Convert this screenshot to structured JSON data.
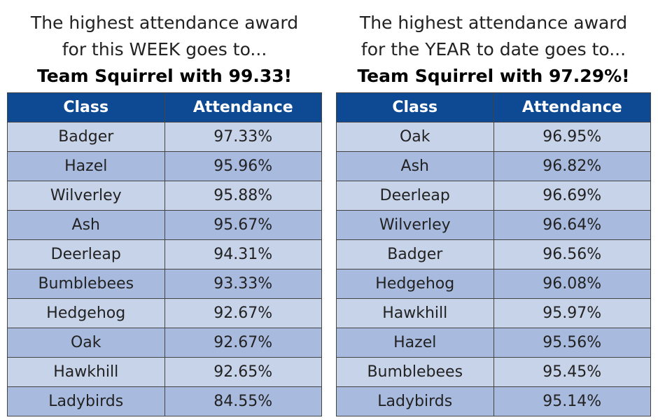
{
  "panels": [
    {
      "heading": [
        "The highest attendance award",
        "for this WEEK goes to...",
        "Team Squirrel with 99.33!"
      ],
      "table": {
        "header": [
          "Class",
          "Attendance"
        ],
        "rows": [
          [
            "Badger",
            "97.33%"
          ],
          [
            "Hazel",
            "95.96%"
          ],
          [
            "Wilverley",
            "95.88%"
          ],
          [
            "Ash",
            "95.67%"
          ],
          [
            "Deerleap",
            "94.31%"
          ],
          [
            "Bumblebees",
            "93.33%"
          ],
          [
            "Hedgehog",
            "92.67%"
          ],
          [
            "Oak",
            "92.67%"
          ],
          [
            "Hawkhill",
            "92.65%"
          ],
          [
            "Ladybirds",
            "84.55%"
          ]
        ]
      }
    },
    {
      "heading": [
        "The highest attendance award",
        "for the YEAR to date goes to...",
        "Team Squirrel with 97.29%!"
      ],
      "table": {
        "header": [
          "Class",
          "Attendance"
        ],
        "rows": [
          [
            "Oak",
            "96.95%"
          ],
          [
            "Ash",
            "96.82%"
          ],
          [
            "Deerleap",
            "96.69%"
          ],
          [
            "Wilverley",
            "96.64%"
          ],
          [
            "Badger",
            "96.56%"
          ],
          [
            "Hedgehog",
            "96.08%"
          ],
          [
            "Hawkhill",
            "95.97%"
          ],
          [
            "Hazel",
            "95.56%"
          ],
          [
            "Bumblebees",
            "95.45%"
          ],
          [
            "Ladybirds",
            "95.14%"
          ]
        ]
      }
    }
  ]
}
